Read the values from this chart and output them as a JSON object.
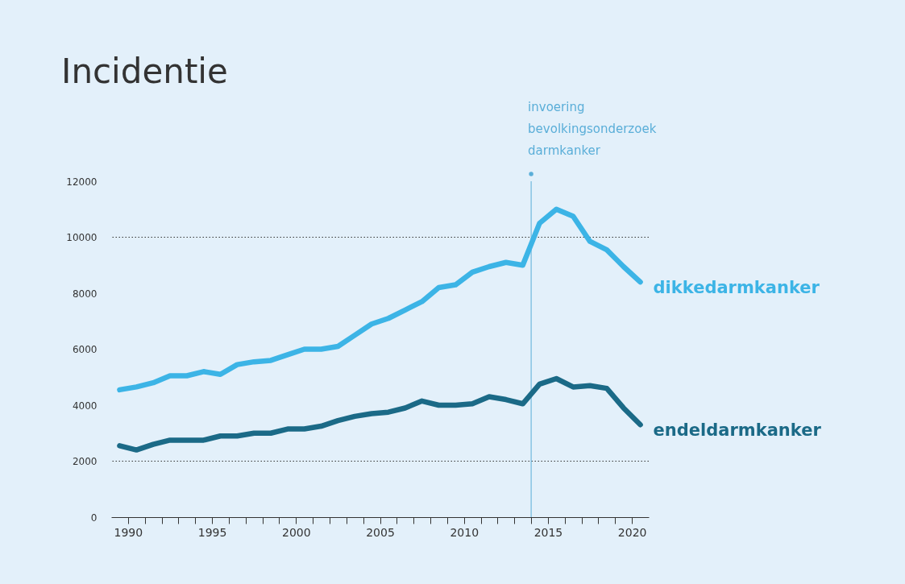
{
  "chart_data": {
    "type": "line",
    "title": "Incidentie",
    "x": [
      1989.5,
      1990.5,
      1991.5,
      1992.5,
      1993.5,
      1994.5,
      1995.5,
      1996.5,
      1997.5,
      1998.5,
      1999.5,
      2000.5,
      2001.5,
      2002.5,
      2003.5,
      2004.5,
      2005.5,
      2006.5,
      2007.5,
      2008.5,
      2009.5,
      2010.5,
      2011.5,
      2012.5,
      2013.5,
      2014.5,
      2015.5,
      2016.5,
      2017.5,
      2018.5,
      2019.5,
      2020.5
    ],
    "series": [
      {
        "name": "dikkedarmkanker",
        "color": "#3cb4e6",
        "values": [
          4550,
          4650,
          4800,
          5050,
          5050,
          5200,
          5100,
          5450,
          5550,
          5600,
          5800,
          6000,
          6000,
          6100,
          6500,
          6900,
          7100,
          7400,
          7700,
          8200,
          8300,
          8750,
          8950,
          9100,
          9000,
          10500,
          11000,
          10750,
          9850,
          9550,
          8950,
          8400
        ]
      },
      {
        "name": "endeldarmkanker",
        "color": "#1b6a87",
        "values": [
          2550,
          2400,
          2600,
          2750,
          2750,
          2750,
          2900,
          2900,
          3000,
          3000,
          3150,
          3150,
          3250,
          3450,
          3600,
          3700,
          3750,
          3900,
          4150,
          4000,
          4000,
          4050,
          4300,
          4200,
          4050,
          4750,
          4950,
          4650,
          4700,
          4600,
          3900,
          3300
        ]
      }
    ],
    "xlim": [
      1989,
      2021
    ],
    "xticks": [
      1990,
      {
        "value": 1991,
        "label": null
      },
      {
        "value": 1992,
        "label": null
      },
      {
        "value": 1993,
        "label": null
      },
      {
        "value": 1994,
        "label": null
      },
      1995,
      {
        "value": 1996,
        "label": null
      },
      {
        "value": 1997,
        "label": null
      },
      {
        "value": 1998,
        "label": null
      },
      {
        "value": 1999,
        "label": null
      },
      2000,
      {
        "value": 2001,
        "label": null
      },
      {
        "value": 2002,
        "label": null
      },
      {
        "value": 2003,
        "label": null
      },
      {
        "value": 2004,
        "label": null
      },
      2005,
      {
        "value": 2006,
        "label": null
      },
      {
        "value": 2007,
        "label": null
      },
      {
        "value": 2008,
        "label": null
      },
      {
        "value": 2009,
        "label": null
      },
      2010,
      {
        "value": 2011,
        "label": null
      },
      {
        "value": 2012,
        "label": null
      },
      {
        "value": 2013,
        "label": null
      },
      {
        "value": 2014,
        "label": null
      },
      2015,
      {
        "value": 2016,
        "label": null
      },
      {
        "value": 2017,
        "label": null
      },
      {
        "value": 2018,
        "label": null
      },
      {
        "value": 2019,
        "label": null
      },
      2020
    ],
    "ylim": [
      0,
      12000
    ],
    "yticks": [
      0,
      2000,
      4000,
      6000,
      8000,
      10000,
      12000
    ],
    "grid": false,
    "line_style": "solid",
    "ref_lines": [
      {
        "axis": "y",
        "value": 2000,
        "color": "#333333",
        "line_style": "dotted"
      },
      {
        "axis": "y",
        "value": 10000,
        "color": "#333333",
        "line_style": "dotted"
      },
      {
        "axis": "x",
        "value": 2014,
        "label": "invoering bevolkingsonderzoek darmkanker",
        "color": "#5aaed8",
        "line_style": "solid"
      }
    ]
  }
}
